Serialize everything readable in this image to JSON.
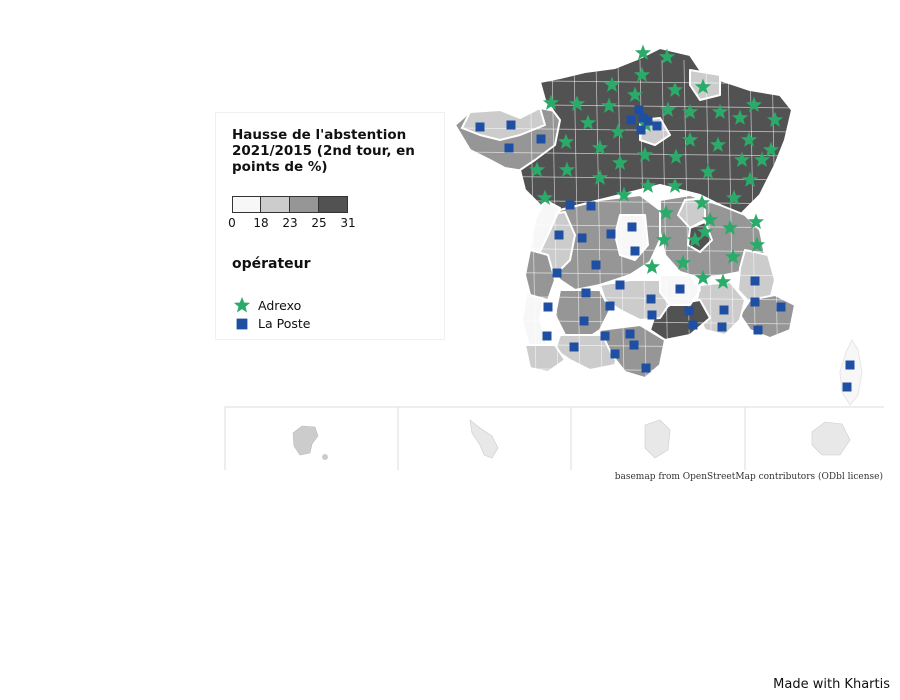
{
  "legend": {
    "title": "Hausse de l'abstention 2021/2015 (2nd tour, en points de %)",
    "breaks": [
      "0",
      "18",
      "23",
      "25",
      "31"
    ],
    "classes": [
      {
        "color": "#f7f7f7"
      },
      {
        "color": "#cccccc"
      },
      {
        "color": "#969696"
      },
      {
        "color": "#525252"
      }
    ],
    "operator_title": "opérateur",
    "operators": [
      {
        "name": "Adrexo",
        "icon": "star-icon",
        "color": "#2bab6a"
      },
      {
        "name": "La Poste",
        "icon": "square-icon",
        "color": "#1f4fa3"
      }
    ]
  },
  "credit": "basemap from OpenStreetMap contributors (ODbl license)",
  "footer": "Made with Khartis",
  "colors": {
    "border": "#ffffff",
    "inset_frame": "#dddddd",
    "island": "#cccccc",
    "island_light": "#e8e8e8"
  }
}
